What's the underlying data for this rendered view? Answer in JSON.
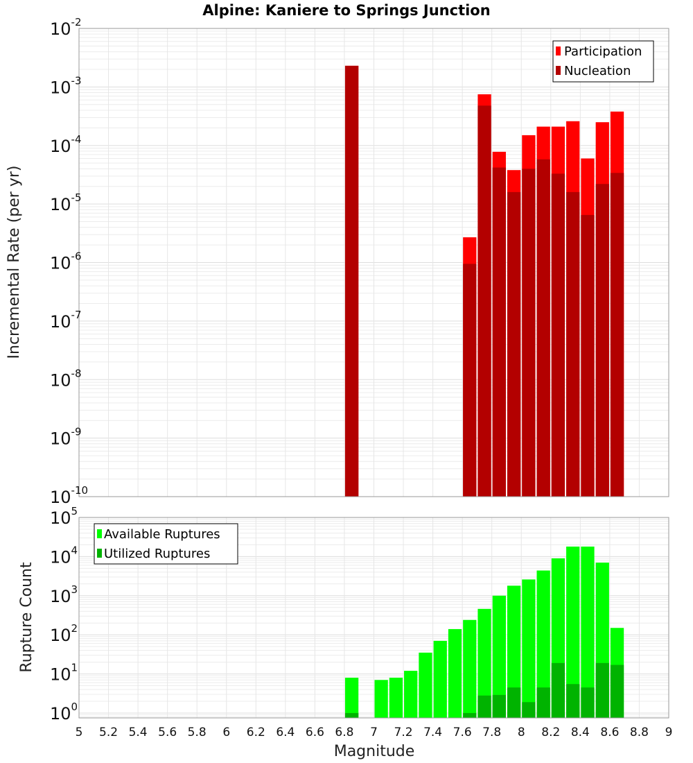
{
  "chart_data": [
    {
      "type": "bar",
      "title": "Alpine: Kaniere to Springs Junction",
      "xlabel": "",
      "ylabel": "Incremental Rate (per yr)",
      "y_scale": "log",
      "xlim": [
        5,
        9
      ],
      "ylim": [
        1e-10,
        0.01
      ],
      "y_tick_exponents": [
        -10,
        -9,
        -8,
        -7,
        -6,
        -5,
        -4,
        -3,
        -2
      ],
      "grid": true,
      "legend_position": "top-right",
      "x": [
        6.85,
        7.65,
        7.75,
        7.85,
        7.95,
        8.05,
        8.15,
        8.25,
        8.35,
        8.45,
        8.55,
        8.65
      ],
      "series": [
        {
          "name": "Participation",
          "color": "#ff0000",
          "values": [
            0.0023,
            2.7e-06,
            0.00075,
            7.8e-05,
            3.8e-05,
            0.00015,
            0.00021,
            0.00021,
            0.00026,
            6e-05,
            0.00025,
            0.00038
          ]
        },
        {
          "name": "Nucleation",
          "color": "#b30000",
          "values": [
            0.0023,
            9.5e-07,
            0.00048,
            4.2e-05,
            1.6e-05,
            4e-05,
            5.8e-05,
            3.3e-05,
            1.6e-05,
            6.5e-06,
            2.2e-05,
            3.4e-05
          ]
        }
      ]
    },
    {
      "type": "bar",
      "title": "",
      "xlabel": "Magnitude",
      "ylabel": "Rupture Count",
      "y_scale": "log",
      "xlim": [
        5,
        9
      ],
      "ylim": [
        0.75,
        100000.0
      ],
      "y_tick_exponents": [
        0,
        1,
        2,
        3,
        4,
        5
      ],
      "x_ticks": [
        "5",
        "5.2",
        "5.4",
        "5.6",
        "5.8",
        "6",
        "6.2",
        "6.4",
        "6.6",
        "6.8",
        "7",
        "7.2",
        "7.4",
        "7.6",
        "7.8",
        "8",
        "8.2",
        "8.4",
        "8.6",
        "8.8",
        "9"
      ],
      "grid": true,
      "legend_position": "top-left",
      "x": [
        6.85,
        7.05,
        7.15,
        7.25,
        7.35,
        7.45,
        7.55,
        7.65,
        7.75,
        7.85,
        7.95,
        8.05,
        8.15,
        8.25,
        8.35,
        8.45,
        8.55,
        8.65
      ],
      "series": [
        {
          "name": "Available Ruptures",
          "color": "#00ff00",
          "values": [
            8,
            7,
            8,
            12,
            35,
            70,
            140,
            240,
            460,
            1000,
            1800,
            2600,
            4400,
            9000,
            18000,
            18000,
            7000,
            150
          ]
        },
        {
          "name": "Utilized Ruptures",
          "color": "#00b300",
          "values": [
            1,
            null,
            null,
            null,
            null,
            null,
            null,
            1,
            2.8,
            2.9,
            4.5,
            1.9,
            4.5,
            19,
            5.5,
            4.5,
            19,
            17
          ]
        }
      ]
    }
  ]
}
